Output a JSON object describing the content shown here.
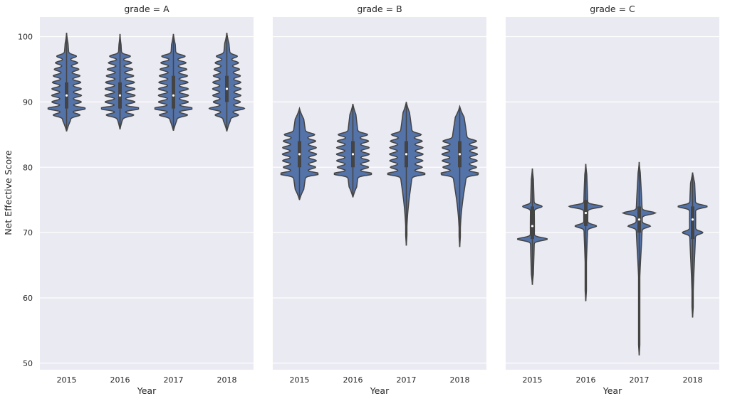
{
  "chart_data": {
    "type": "violin",
    "facet_title_prefix": "grade = ",
    "xlabel": "Year",
    "ylabel": "Net Effective Score",
    "ylim": [
      49,
      103
    ],
    "yticks": [
      50,
      60,
      70,
      80,
      90,
      100
    ],
    "categories": [
      "2015",
      "2016",
      "2017",
      "2018"
    ],
    "color": "#5473a8",
    "panels": [
      {
        "grade": "A",
        "violins": [
          {
            "year": "2015",
            "min": 85.5,
            "max": 100.6,
            "q1": 89,
            "median": 91,
            "q3": 93,
            "modes": [
              89,
              88,
              90,
              91,
              92,
              93,
              94,
              95,
              96,
              97
            ],
            "base": 0.5,
            "peak": 0.85
          },
          {
            "year": "2016",
            "min": 85.8,
            "max": 100.4,
            "q1": 89,
            "median": 91,
            "q3": 93,
            "modes": [
              89,
              88,
              90,
              91,
              92,
              93,
              94,
              95,
              96,
              97
            ],
            "base": 0.35,
            "peak": 1.0
          },
          {
            "year": "2017",
            "min": 85.6,
            "max": 100.4,
            "q1": 89,
            "median": 91,
            "q3": 94,
            "modes": [
              89,
              88,
              90,
              91,
              92,
              93,
              94,
              95,
              96,
              97
            ],
            "base": 0.4,
            "peak": 0.95
          },
          {
            "year": "2018",
            "min": 85.5,
            "max": 100.6,
            "q1": 90,
            "median": 92,
            "q3": 94,
            "modes": [
              89,
              88,
              90,
              91,
              92,
              93,
              94,
              95,
              96,
              97
            ],
            "base": 0.55,
            "peak": 0.75
          }
        ]
      },
      {
        "grade": "B",
        "violins": [
          {
            "year": "2015",
            "min": 75.0,
            "max": 89.0,
            "q1": 80,
            "median": 82,
            "q3": 84,
            "modes": [
              79,
              80,
              81,
              82,
              83,
              84,
              85
            ],
            "base": 0.75,
            "peak": 0.82
          },
          {
            "year": "2016",
            "min": 75.4,
            "max": 89.7,
            "q1": 80,
            "median": 82,
            "q3": 84,
            "modes": [
              79,
              80,
              81,
              82,
              83,
              84,
              85
            ],
            "base": 0.62,
            "peak": 0.88
          },
          {
            "year": "2017",
            "min": 68.0,
            "max": 90.0,
            "q1": 80,
            "median": 82,
            "q3": 84,
            "modes": [
              79,
              80,
              81,
              82,
              83,
              84,
              85
            ],
            "base": 0.72,
            "peak": 0.82
          },
          {
            "year": "2018",
            "min": 67.8,
            "max": 89.3,
            "q1": 80,
            "median": 82,
            "q3": 84,
            "modes": [
              79,
              80,
              81,
              82,
              83,
              84
            ],
            "base": 0.82,
            "peak": 0.82
          }
        ]
      },
      {
        "grade": "C",
        "violins": [
          {
            "year": "2015",
            "min": 62.0,
            "max": 79.8,
            "q1": 69,
            "median": 71,
            "q3": 74,
            "modes": [
              69,
              74
            ],
            "base": 0.2,
            "peak": 0.72
          },
          {
            "year": "2016",
            "min": 59.5,
            "max": 80.5,
            "q1": 71,
            "median": 73,
            "q3": 75,
            "modes": [
              74,
              71
            ],
            "base": 0.2,
            "peak": 0.8
          },
          {
            "year": "2017",
            "min": 51.2,
            "max": 80.8,
            "q1": 70,
            "median": 72,
            "q3": 74,
            "modes": [
              73,
              71
            ],
            "base": 0.3,
            "peak": 0.72
          },
          {
            "year": "2018",
            "min": 57.0,
            "max": 79.2,
            "q1": 69,
            "median": 72,
            "q3": 74,
            "modes": [
              74,
              70
            ],
            "base": 0.3,
            "peak": 0.65
          }
        ]
      }
    ]
  }
}
